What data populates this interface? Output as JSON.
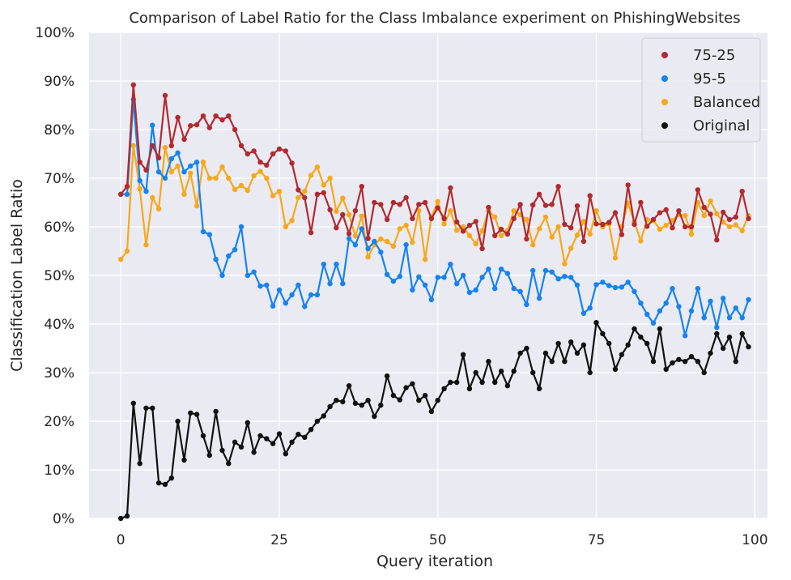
{
  "chart_data": {
    "type": "line",
    "title": "Comparison of Label Ratio for the Class Imbalance experiment on PhishingWebsites",
    "xlabel": "Query iteration",
    "ylabel": "Classification Label Ratio",
    "xlim": [
      -5,
      102
    ],
    "ylim": [
      0,
      100
    ],
    "xticks": [
      0,
      25,
      50,
      75,
      100
    ],
    "xtick_labels": [
      "0",
      "25",
      "50",
      "75",
      "100"
    ],
    "yticks": [
      0,
      10,
      20,
      30,
      40,
      50,
      60,
      70,
      80,
      90,
      100
    ],
    "ytick_labels": [
      "0%",
      "10%",
      "20%",
      "30%",
      "40%",
      "50%",
      "60%",
      "70%",
      "80%",
      "90%",
      "100%"
    ],
    "grid": true,
    "legend_position": "top-right",
    "background": "#eaeaf2",
    "x": [
      0,
      1,
      2,
      3,
      4,
      5,
      6,
      7,
      8,
      9,
      10,
      11,
      12,
      13,
      14,
      15,
      16,
      17,
      18,
      19,
      20,
      21,
      22,
      23,
      24,
      25,
      26,
      27,
      28,
      29,
      30,
      31,
      32,
      33,
      34,
      35,
      36,
      37,
      38,
      39,
      40,
      41,
      42,
      43,
      44,
      45,
      46,
      47,
      48,
      49,
      50,
      51,
      52,
      53,
      54,
      55,
      56,
      57,
      58,
      59,
      60,
      61,
      62,
      63,
      64,
      65,
      66,
      67,
      68,
      69,
      70,
      71,
      72,
      73,
      74,
      75,
      76,
      77,
      78,
      79,
      80,
      81,
      82,
      83,
      84,
      85,
      86,
      87,
      88,
      89,
      90,
      91,
      92,
      93,
      94,
      95,
      96,
      97,
      98,
      99
    ],
    "series": [
      {
        "name": "75-25",
        "color": "#b22a2e",
        "values": [
          66.7,
          68.3,
          89.2,
          73.3,
          71.7,
          76.7,
          74.2,
          87.0,
          76.7,
          82.5,
          78.0,
          80.8,
          81.0,
          82.8,
          80.4,
          82.8,
          82.0,
          82.8,
          80.0,
          76.7,
          75.0,
          75.6,
          73.3,
          72.7,
          75.0,
          76.0,
          75.6,
          73.1,
          67.6,
          66.0,
          58.8,
          66.7,
          67.0,
          63.5,
          59.8,
          62.5,
          58.6,
          63.3,
          68.3,
          57.6,
          65.0,
          64.6,
          61.5,
          65.0,
          64.6,
          66.0,
          61.7,
          64.6,
          65.0,
          61.7,
          63.9,
          61.7,
          68.0,
          61.0,
          59.1,
          60.3,
          61.1,
          55.5,
          64.0,
          58.2,
          59.5,
          58.5,
          61.7,
          64.6,
          57.5,
          64.5,
          66.7,
          64.4,
          64.6,
          68.3,
          60.5,
          59.8,
          64.3,
          57.0,
          66.4,
          60.6,
          60.5,
          60.9,
          62.9,
          58.4,
          68.6,
          60.5,
          65.0,
          60.1,
          61.5,
          62.9,
          63.5,
          59.8,
          63.3,
          60.0,
          60.0,
          67.6,
          64.0,
          62.6,
          57.3,
          63.0,
          61.5,
          62.0,
          67.3,
          61.7
        ]
      },
      {
        "name": "95-5",
        "color": "#1683f0",
        "values": [
          66.7,
          66.7,
          86.2,
          69.5,
          67.3,
          80.9,
          71.3,
          70.0,
          74.0,
          75.2,
          71.3,
          72.5,
          73.3,
          59.0,
          58.4,
          53.3,
          50.0,
          54.0,
          55.3,
          60.0,
          50.0,
          50.7,
          47.8,
          48.0,
          43.7,
          47.0,
          44.3,
          46.0,
          48.0,
          43.6,
          46.0,
          46.0,
          52.3,
          48.3,
          52.3,
          48.3,
          57.6,
          56.3,
          59.6,
          55.5,
          57.0,
          54.8,
          50.2,
          48.8,
          49.8,
          56.3,
          47.0,
          49.7,
          48.0,
          45.0,
          49.6,
          49.6,
          52.3,
          48.3,
          50.0,
          46.5,
          47.0,
          49.6,
          51.3,
          47.3,
          51.3,
          50.4,
          47.3,
          46.7,
          44.0,
          51.0,
          45.3,
          51.0,
          50.7,
          49.3,
          49.8,
          49.6,
          48.0,
          42.2,
          43.3,
          48.1,
          48.6,
          47.9,
          47.5,
          47.6,
          48.6,
          46.7,
          44.3,
          42.0,
          40.2,
          42.7,
          44.3,
          47.3,
          43.6,
          37.6,
          42.7,
          47.3,
          41.3,
          44.7,
          39.3,
          45.3,
          41.3,
          43.3,
          41.3,
          45.0
        ]
      },
      {
        "name": "Balanced",
        "color": "#f7a81b",
        "values": [
          53.3,
          55.0,
          76.7,
          67.8,
          56.3,
          66.0,
          63.7,
          76.3,
          71.3,
          72.5,
          66.7,
          71.0,
          64.3,
          73.3,
          70.0,
          70.0,
          72.3,
          70.0,
          67.7,
          68.5,
          67.5,
          70.5,
          71.4,
          70.0,
          66.4,
          67.3,
          60.0,
          61.3,
          66.0,
          67.3,
          70.6,
          72.3,
          68.6,
          70.0,
          63.2,
          65.9,
          62.5,
          58.1,
          62.2,
          53.8,
          56.3,
          57.5,
          57.0,
          56.0,
          59.6,
          60.3,
          56.8,
          63.3,
          53.3,
          62.0,
          65.2,
          60.6,
          63.3,
          59.3,
          60.0,
          58.2,
          56.5,
          59.2,
          63.3,
          62.0,
          58.2,
          59.2,
          63.3,
          62.5,
          61.5,
          56.3,
          59.6,
          62.0,
          57.9,
          60.0,
          52.4,
          55.6,
          58.3,
          61.1,
          58.5,
          63.3,
          60.0,
          60.6,
          53.6,
          60.0,
          64.9,
          61.0,
          57.1,
          61.5,
          61.3,
          59.5,
          60.3,
          61.3,
          62.5,
          62.3,
          58.5,
          65.0,
          62.3,
          65.3,
          62.7,
          61.0,
          60.0,
          60.4,
          59.2,
          62.3
        ]
      },
      {
        "name": "Original",
        "color": "#111111",
        "values": [
          0.0,
          0.5,
          23.7,
          11.3,
          22.7,
          22.7,
          7.3,
          7.0,
          8.3,
          20.0,
          12.0,
          21.7,
          21.4,
          17.0,
          13.0,
          22.0,
          14.0,
          11.3,
          15.7,
          14.7,
          19.7,
          13.6,
          17.0,
          16.4,
          15.4,
          17.4,
          13.3,
          15.7,
          17.3,
          16.7,
          18.3,
          20.0,
          21.1,
          23.0,
          24.3,
          24.0,
          27.3,
          23.7,
          23.3,
          24.3,
          21.0,
          23.3,
          29.3,
          25.3,
          24.4,
          26.9,
          27.7,
          24.3,
          25.3,
          22.0,
          24.3,
          26.7,
          28.0,
          28.0,
          33.7,
          26.7,
          30.0,
          28.0,
          32.3,
          28.0,
          30.3,
          27.3,
          30.3,
          34.0,
          35.0,
          30.0,
          26.7,
          34.0,
          32.3,
          36.0,
          32.3,
          36.3,
          34.0,
          35.7,
          30.0,
          40.3,
          38.0,
          36.0,
          30.7,
          33.7,
          35.7,
          39.0,
          37.3,
          36.0,
          32.3,
          39.0,
          30.7,
          32.0,
          32.7,
          32.3,
          33.3,
          32.3,
          30.0,
          34.0,
          38.0,
          35.0,
          37.3,
          32.3,
          38.0,
          35.3
        ]
      }
    ]
  }
}
